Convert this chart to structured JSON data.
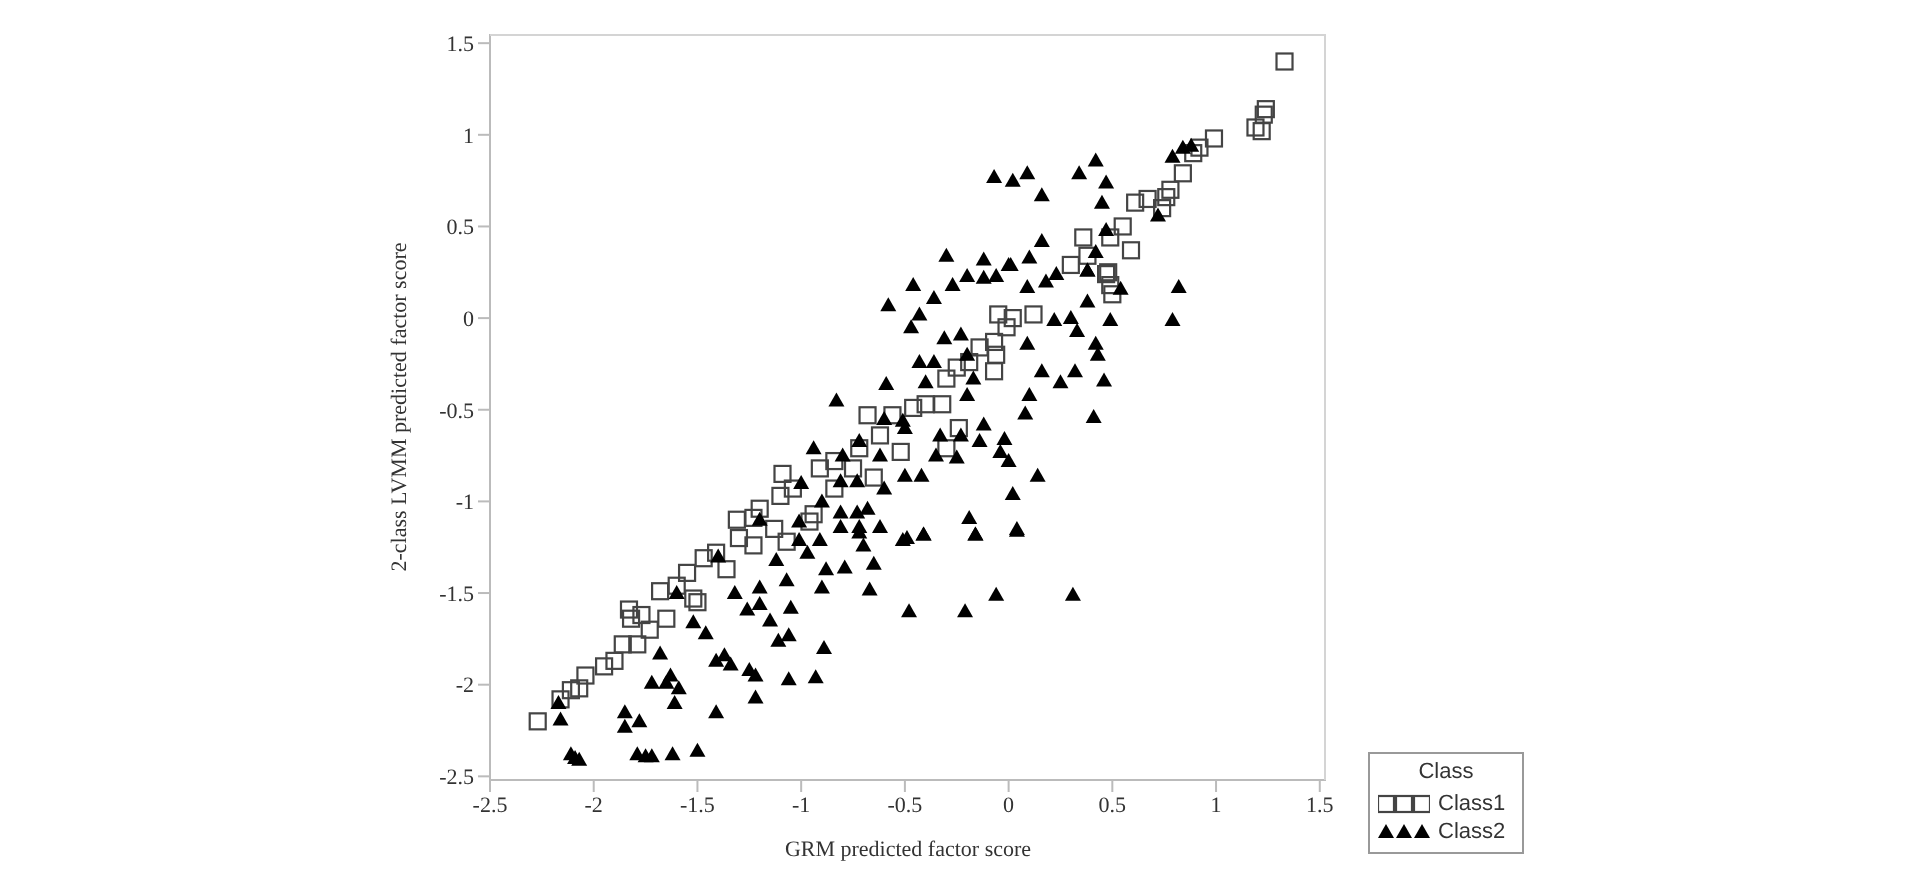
{
  "chart_data": {
    "type": "scatter",
    "xlabel": "GRM predicted factor score",
    "ylabel": "2-class LVMM predicted factor score",
    "legend_title": "Class",
    "legend": "bottom right",
    "grid": false,
    "xlim": [
      -2.5,
      1.53
    ],
    "ylim": [
      -2.52,
      1.55
    ],
    "xticks": [
      -2.5,
      -2,
      -1.5,
      -1,
      -0.5,
      0,
      0.5,
      1,
      1.5
    ],
    "yticks": [
      -2.5,
      -2,
      -1.5,
      -1,
      -0.5,
      0,
      0.5,
      1,
      1.5
    ],
    "series": [
      {
        "name": "Class1",
        "color": "#444444",
        "marker": "square",
        "x": [
          1.33,
          1.24,
          1.23,
          1.19,
          1.22,
          0.99,
          0.92,
          0.89,
          0.84,
          0.78,
          0.76,
          0.74,
          0.67,
          0.61,
          0.59,
          0.55,
          0.49,
          0.36,
          0.38,
          0.3,
          0.48,
          0.47,
          0.49,
          0.5,
          0.12,
          0.02,
          -0.05,
          -0.01,
          -0.07,
          -0.14,
          -0.19,
          -0.25,
          -0.3,
          -0.06,
          -0.07,
          -0.32,
          -0.4,
          -0.46,
          -0.56,
          -0.68,
          -0.24,
          -0.3,
          -0.52,
          -0.62,
          -0.72,
          -0.84,
          -0.91,
          -1.09,
          -1.04,
          -1.2,
          -1.31,
          -1.23,
          -1.1,
          -0.84,
          -0.75,
          -0.65,
          -0.94,
          -2.27,
          -2.16,
          -2.11,
          -2.07,
          -2.04,
          -1.95,
          -1.9,
          -1.86,
          -1.79,
          -1.82,
          -1.83,
          -1.77,
          -1.73,
          -1.65,
          -1.68,
          -1.6,
          -1.55,
          -1.52,
          -1.5,
          -1.47,
          -1.41,
          -1.36,
          -1.3,
          -1.23,
          -1.13,
          -1.07,
          -0.96
        ],
        "values": [
          1.4,
          1.14,
          1.11,
          1.04,
          1.02,
          0.98,
          0.93,
          0.9,
          0.79,
          0.7,
          0.66,
          0.6,
          0.65,
          0.63,
          0.37,
          0.5,
          0.44,
          0.44,
          0.34,
          0.29,
          0.25,
          0.24,
          0.18,
          0.13,
          0.02,
          0,
          0.02,
          -0.05,
          -0.13,
          -0.16,
          -0.24,
          -0.27,
          -0.33,
          -0.2,
          -0.29,
          -0.47,
          -0.47,
          -0.49,
          -0.53,
          -0.53,
          -0.6,
          -0.71,
          -0.73,
          -0.64,
          -0.71,
          -0.78,
          -0.82,
          -0.85,
          -0.93,
          -1.04,
          -1.1,
          -1.09,
          -0.97,
          -0.93,
          -0.82,
          -0.87,
          -1.07,
          -2.2,
          -2.08,
          -2.03,
          -2.02,
          -1.95,
          -1.9,
          -1.87,
          -1.78,
          -1.78,
          -1.64,
          -1.59,
          -1.62,
          -1.7,
          -1.64,
          -1.49,
          -1.46,
          -1.39,
          -1.53,
          -1.55,
          -1.31,
          -1.28,
          -1.37,
          -1.2,
          -1.24,
          -1.15,
          -1.22,
          -1.11
        ]
      },
      {
        "name": "Class2",
        "color": "#000000",
        "marker": "triangle",
        "x": [
          -0.07,
          0.02,
          0.09,
          0.16,
          0.34,
          0.42,
          0.47,
          0.45,
          0.47,
          0.79,
          0.84,
          0.88,
          0.72,
          0.16,
          0.1,
          0,
          -0.12,
          -0.3,
          -0.2,
          -0.06,
          0.42,
          0.38,
          0.23,
          -0.46,
          -0.58,
          -0.36,
          -0.27,
          -0.12,
          0.01,
          0.09,
          0.18,
          0.38,
          0.54,
          0.82,
          0.79,
          0.49,
          0.38,
          0.3,
          0.22,
          0.33,
          0.42,
          0.43,
          0.46,
          0.32,
          0.25,
          0.16,
          0.09,
          0.1,
          0.08,
          0.41,
          -0.43,
          -0.47,
          -0.83,
          -0.59,
          -0.43,
          -0.36,
          -0.31,
          -0.23,
          -0.17,
          -0.2,
          -0.12,
          -0.14,
          -0.04,
          -0.02,
          0,
          0.14,
          0.02,
          0.04,
          -0.19,
          -0.16,
          -0.41,
          -0.49,
          -0.25,
          -0.35,
          -0.42,
          -0.5,
          -0.33,
          -0.23,
          -0.6,
          -0.68,
          -0.73,
          -0.81,
          -0.81,
          -0.73,
          -0.72,
          -0.91,
          -0.94,
          -1.01,
          -0.72,
          -0.62,
          -0.51,
          -2.17,
          -2.16,
          -2.11,
          -2.09,
          -2.07,
          -1.85,
          -1.85,
          -1.78,
          -1.79,
          -1.75,
          -1.72,
          -1.62,
          -1.5,
          -1.41,
          -1.72,
          -1.63,
          -1.61,
          -1.68,
          -1.65,
          -1.59,
          -1.52,
          -1.46,
          -1.41,
          -1.37,
          -1.34,
          -1.25,
          -1.22,
          -1.22,
          -1.06,
          -0.93,
          -0.89,
          -1.06,
          -1.11,
          -1.15,
          -1.26,
          -1.2,
          -1.05,
          -1.07,
          -0.9,
          -0.88,
          -0.79,
          -0.67,
          -0.65,
          -0.7,
          -0.51,
          -0.41,
          -0.48,
          -0.21,
          -0.06,
          0.31,
          0.04,
          -0.16,
          -0.62,
          -0.72,
          -0.81,
          -0.97,
          -1.2,
          -1.32,
          -1.12,
          -1.01,
          -1.2,
          -1.0,
          -0.8,
          -0.6,
          -0.4,
          -0.2,
          -1.4,
          -1.6,
          -0.9,
          -0.5
        ],
        "values": [
          0.77,
          0.75,
          0.79,
          0.67,
          0.79,
          0.86,
          0.74,
          0.63,
          0.48,
          0.88,
          0.93,
          0.94,
          0.56,
          0.42,
          0.33,
          0.29,
          0.32,
          0.34,
          0.23,
          0.23,
          0.36,
          0.26,
          0.24,
          0.18,
          0.07,
          0.11,
          0.18,
          0.22,
          0.29,
          0.17,
          0.2,
          0.26,
          0.16,
          0.17,
          -0.01,
          -0.01,
          0.09,
          0,
          -0.01,
          -0.07,
          -0.14,
          -0.2,
          -0.34,
          -0.29,
          -0.35,
          -0.29,
          -0.14,
          -0.42,
          -0.52,
          -0.54,
          0.02,
          -0.05,
          -0.45,
          -0.36,
          -0.24,
          -0.24,
          -0.11,
          -0.09,
          -0.33,
          -0.42,
          -0.58,
          -0.67,
          -0.73,
          -0.66,
          -0.78,
          -0.86,
          -0.96,
          -1.15,
          -1.09,
          -1.18,
          -1.18,
          -1.2,
          -0.76,
          -0.75,
          -0.86,
          -0.86,
          -0.64,
          -0.64,
          -0.93,
          -1.04,
          -0.89,
          -0.89,
          -1.06,
          -1.06,
          -1.17,
          -1.21,
          -0.71,
          -1.11,
          -0.67,
          -0.75,
          -0.56,
          -2.1,
          -2.19,
          -2.38,
          -2.4,
          -2.41,
          -2.15,
          -2.23,
          -2.2,
          -2.38,
          -2.39,
          -2.39,
          -2.38,
          -2.36,
          -2.15,
          -1.99,
          -1.95,
          -2.1,
          -1.83,
          -1.99,
          -2.02,
          -1.66,
          -1.72,
          -1.87,
          -1.84,
          -1.89,
          -1.92,
          -1.95,
          -2.07,
          -1.97,
          -1.96,
          -1.8,
          -1.73,
          -1.76,
          -1.65,
          -1.59,
          -1.56,
          -1.58,
          -1.43,
          -1.47,
          -1.37,
          -1.36,
          -1.48,
          -1.34,
          -1.24,
          -1.21,
          -1.18,
          -1.6,
          -1.6,
          -1.51,
          -1.51,
          -1.16,
          -1.18,
          -1.14,
          -1.14,
          -1.14,
          -1.28,
          -1.47,
          -1.5,
          -1.32,
          -1.21,
          -1.1,
          -0.9,
          -0.75,
          -0.55,
          -0.35,
          -0.2,
          -1.3,
          -1.5,
          -1.0,
          -0.6
        ]
      }
    ]
  }
}
